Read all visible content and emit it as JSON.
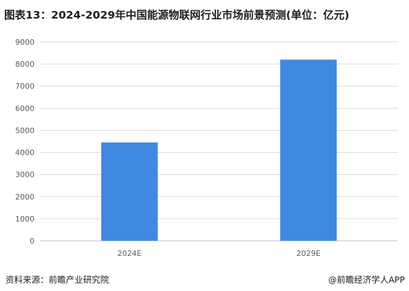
{
  "title": "图表13：2024-2029年中国能源物联网行业市场前景预测(单位：亿元)",
  "chart_data": {
    "type": "bar",
    "categories": [
      "2024E",
      "2029E"
    ],
    "series": [
      {
        "values": [
          4450,
          8200
        ]
      }
    ],
    "ylim": [
      0,
      9000
    ],
    "yticks": [
      0,
      1000,
      2000,
      3000,
      4000,
      5000,
      6000,
      7000,
      8000,
      9000
    ],
    "grid": true,
    "legend": "none",
    "bar_color": "#3f89e0"
  },
  "footer": {
    "source": "资料来源：前瞻产业研究院",
    "credit": "@前瞻经济学人APP"
  }
}
